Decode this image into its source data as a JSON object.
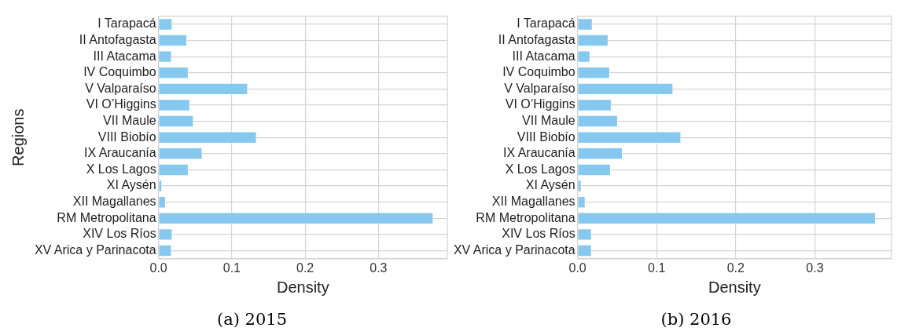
{
  "chart_data": [
    {
      "type": "bar",
      "orientation": "horizontal",
      "ylabel": "Regions",
      "xlabel": "Density",
      "annotations": [
        "(a) 2015"
      ],
      "categories": [
        "I Tarapacá",
        "II Antofagasta",
        "III Atacama",
        "IV Coquimbo",
        "V Valparaíso",
        "VI O’Higgins",
        "VII Maule",
        "VIII Biobío",
        "IX Araucanía",
        "X Los Lagos",
        "XI Aysén",
        "XII Magallanes",
        "RM Metropolitana",
        "XIV Los Ríos",
        "XV Arica y Parinacota"
      ],
      "values": [
        0.019,
        0.039,
        0.018,
        0.041,
        0.122,
        0.043,
        0.048,
        0.134,
        0.06,
        0.041,
        0.005,
        0.01,
        0.375,
        0.019,
        0.018
      ],
      "color": "#87c8ee",
      "xlim": [
        0,
        0.394
      ],
      "xticks": [
        {
          "value": 0,
          "label": "0.0"
        },
        0.1,
        0.2,
        0.3
      ],
      "grid": true,
      "legend": false
    },
    {
      "type": "bar",
      "orientation": "horizontal",
      "xlabel": "Density",
      "annotations": [
        "(b) 2016"
      ],
      "categories": [
        "I Tarapacá",
        "II Antofagasta",
        "III Atacama",
        "IV Coquimbo",
        "V Valparaíso",
        "VI O’Higgins",
        "VII Maule",
        "VIII Biobío",
        "IX Araucanía",
        "X Los Lagos",
        "XI Aysén",
        "XII Magallanes",
        "RM Metropolitana",
        "XIV Los Ríos",
        "XV Arica y Parinacota"
      ],
      "values": [
        0.019,
        0.039,
        0.016,
        0.041,
        0.121,
        0.043,
        0.051,
        0.131,
        0.057,
        0.042,
        0.005,
        0.01,
        0.377,
        0.018,
        0.018
      ],
      "color": "#87c8ee",
      "xlim": [
        0,
        0.397
      ],
      "xticks": [
        {
          "value": 0,
          "label": "0.0"
        },
        0.1,
        0.2,
        0.3
      ],
      "grid": true,
      "legend": false
    }
  ]
}
